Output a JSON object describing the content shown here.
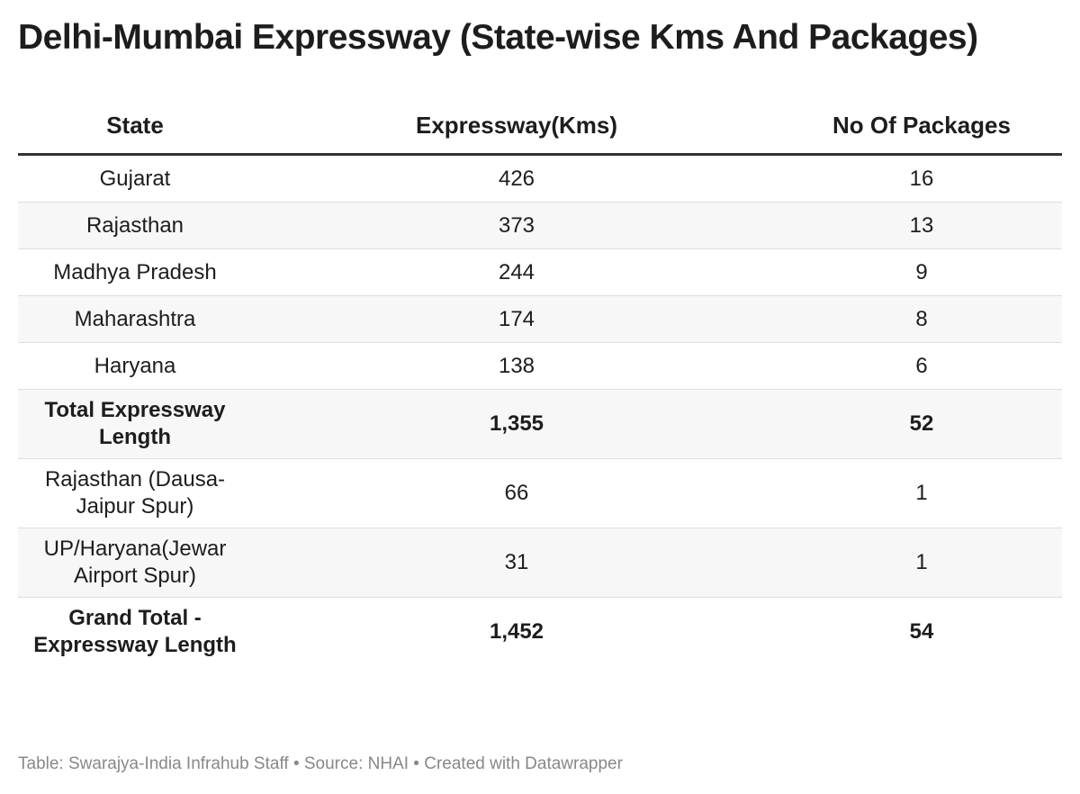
{
  "chart_data": {
    "type": "table",
    "title": "Delhi-Mumbai Expressway (State-wise Kms And Packages)",
    "columns": [
      "State",
      "Expressway(Kms)",
      "No Of Packages"
    ],
    "rows": [
      {
        "state": "Gujarat",
        "kms": "426",
        "packages": "16",
        "bold": false
      },
      {
        "state": "Rajasthan",
        "kms": "373",
        "packages": "13",
        "bold": false
      },
      {
        "state": "Madhya Pradesh",
        "kms": "244",
        "packages": "9",
        "bold": false
      },
      {
        "state": "Maharashtra",
        "kms": "174",
        "packages": "8",
        "bold": false
      },
      {
        "state": "Haryana",
        "kms": "138",
        "packages": "6",
        "bold": false
      },
      {
        "state": "Total Expressway Length",
        "kms": "1,355",
        "packages": "52",
        "bold": true
      },
      {
        "state": "Rajasthan (Dausa-Jaipur Spur)",
        "kms": "66",
        "packages": "1",
        "bold": false
      },
      {
        "state": "UP/Haryana(Jewar Airport Spur)",
        "kms": "31",
        "packages": "1",
        "bold": false
      },
      {
        "state": "Grand Total - Expressway Length",
        "kms": "1,452",
        "packages": "54",
        "bold": true
      }
    ],
    "footer": "Table: Swarajya-India Infrahub Staff • Source: NHAI • Created with Datawrapper",
    "colors": {
      "stripe": "#f7f7f7",
      "header_rule": "#333333",
      "footer_text": "#888888"
    }
  }
}
